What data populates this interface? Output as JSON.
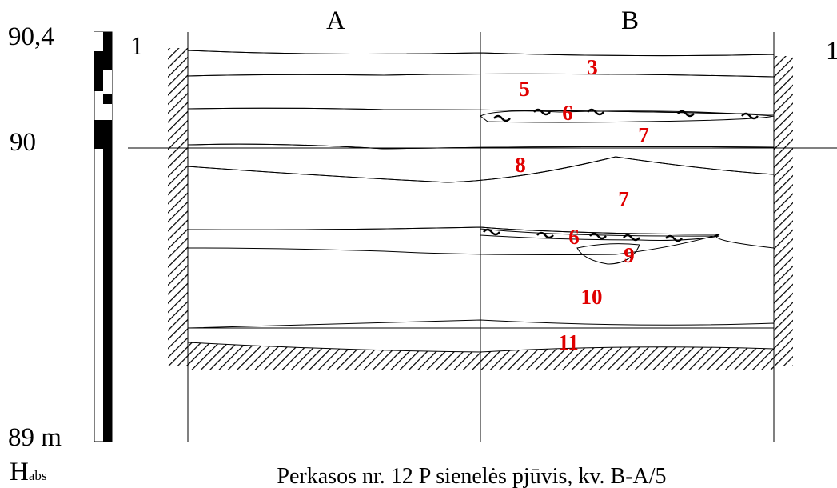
{
  "scale": {
    "top": "90,4",
    "middle": "90",
    "bottom": "89 m",
    "axis": "H",
    "axis_sub": "abs"
  },
  "columns": [
    "A",
    "B"
  ],
  "section_marks": [
    "1",
    "1"
  ],
  "layers": [
    "3",
    "5",
    "6",
    "7",
    "8",
    "7",
    "6",
    "9",
    "10",
    "11"
  ],
  "caption": "Perkasos nr. 12 P sienelės pjūvis, kv. B-A/5"
}
